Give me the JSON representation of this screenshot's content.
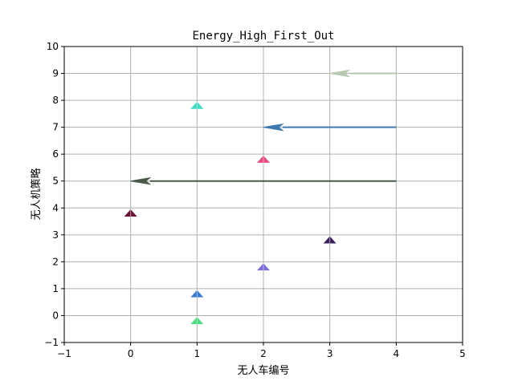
{
  "chart_data": {
    "type": "scatter",
    "title": "Energy_High_First_Out",
    "xlabel": "无人车编号",
    "ylabel": "无人机策略",
    "xlim": [
      -1,
      5
    ],
    "ylim": [
      -1,
      10
    ],
    "xticks": [
      -1,
      0,
      1,
      2,
      3,
      4,
      5
    ],
    "yticks": [
      -1,
      0,
      1,
      2,
      3,
      4,
      5,
      6,
      7,
      8,
      9,
      10
    ],
    "xtick_labels": [
      "−1",
      "0",
      "1",
      "2",
      "3",
      "4",
      "5"
    ],
    "ytick_labels": [
      "−1",
      "0",
      "1",
      "2",
      "3",
      "4",
      "5",
      "6",
      "7",
      "8",
      "9",
      "10"
    ],
    "grid": true,
    "markers": [
      {
        "x": 1,
        "y": -0.2,
        "color": "#4ade80"
      },
      {
        "x": 1,
        "y": 0.8,
        "color": "#3a7bd5"
      },
      {
        "x": 2,
        "y": 1.8,
        "color": "#7b6fe0"
      },
      {
        "x": 3,
        "y": 2.8,
        "color": "#3b1e5e"
      },
      {
        "x": 0,
        "y": 3.8,
        "color": "#6b1036"
      },
      {
        "x": 2,
        "y": 5.8,
        "color": "#e84a7a"
      },
      {
        "x": 1,
        "y": 7.8,
        "color": "#3ddcc0"
      }
    ],
    "arrows": [
      {
        "x_start": 4,
        "x_end": 0,
        "y": 5,
        "color": "#4a5a4a"
      },
      {
        "x_start": 4,
        "x_end": 2,
        "y": 7,
        "color": "#3d7ab0"
      },
      {
        "x_start": 4,
        "x_end": 3,
        "y": 9,
        "color": "#b7c9b0"
      }
    ]
  }
}
